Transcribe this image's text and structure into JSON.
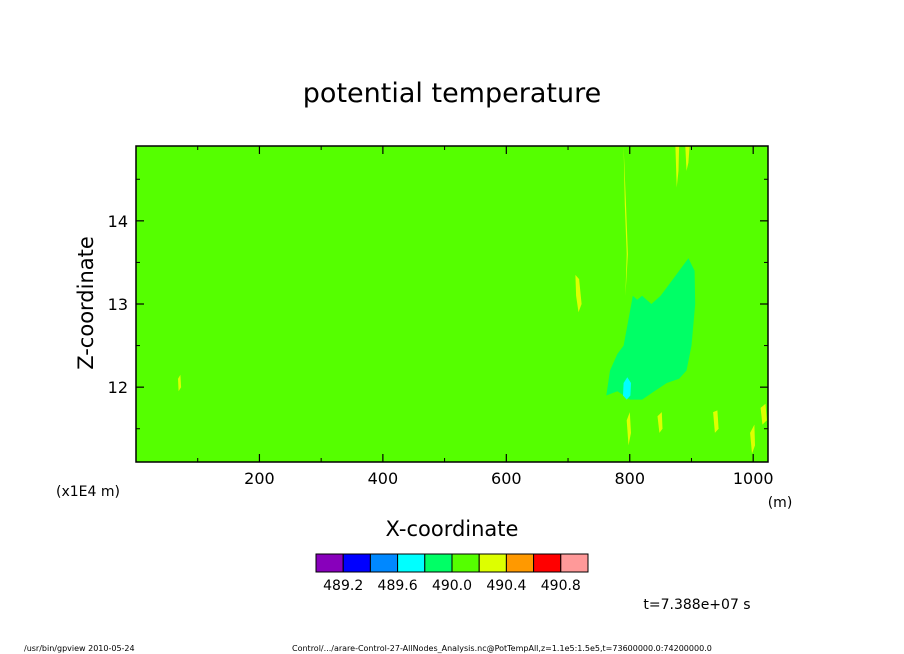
{
  "chart_data": {
    "type": "heatmap",
    "title": "potential temperature",
    "xlabel": "X-coordinate",
    "ylabel": "Z-coordinate",
    "x_unit": "(m)",
    "y_unit": "(x1E4 m)",
    "xlim": [
      0,
      1024
    ],
    "ylim": [
      11.1,
      14.9
    ],
    "x_ticks": [
      200,
      400,
      600,
      800,
      1000
    ],
    "x_tick_labels": [
      "200",
      "400",
      "600",
      "800",
      "1000"
    ],
    "y_ticks": [
      12,
      13,
      14
    ],
    "y_tick_labels": [
      "12",
      "13",
      "14"
    ],
    "background_level_color": "#55ff00",
    "colorbar": {
      "colors": [
        "#8800bb",
        "#0000ff",
        "#0088ff",
        "#00ffff",
        "#00ff66",
        "#55ff00",
        "#ddff00",
        "#ff9900",
        "#ff0000",
        "#ff9999"
      ],
      "labels": [
        "489.2",
        "489.6",
        "490.0",
        "490.4",
        "490.8"
      ]
    },
    "regions": [
      {
        "color": "#00ff66",
        "polygon": [
          [
            762,
            11.9
          ],
          [
            768,
            12.2
          ],
          [
            780,
            12.4
          ],
          [
            790,
            12.5
          ],
          [
            800,
            12.9
          ],
          [
            805,
            13.1
          ],
          [
            812,
            13.05
          ],
          [
            820,
            13.1
          ],
          [
            835,
            13.0
          ],
          [
            850,
            13.1
          ],
          [
            870,
            13.3
          ],
          [
            885,
            13.45
          ],
          [
            895,
            13.55
          ],
          [
            905,
            13.4
          ],
          [
            906,
            13.0
          ],
          [
            900,
            12.5
          ],
          [
            892,
            12.2
          ],
          [
            880,
            12.1
          ],
          [
            860,
            12.05
          ],
          [
            840,
            11.95
          ],
          [
            820,
            11.85
          ],
          [
            800,
            11.85
          ],
          [
            780,
            11.95
          ]
        ]
      },
      {
        "color": "#00ffff",
        "polygon": [
          [
            790,
            12.05
          ],
          [
            796,
            12.12
          ],
          [
            802,
            12.05
          ],
          [
            801,
            11.9
          ],
          [
            795,
            11.85
          ],
          [
            789,
            11.9
          ]
        ]
      },
      {
        "color": "#ddff00",
        "polygon": [
          [
            790,
            14.9
          ],
          [
            794,
            14.2
          ],
          [
            797,
            13.6
          ],
          [
            793,
            13.1
          ],
          [
            795,
            13.6
          ],
          [
            792,
            14.2
          ]
        ]
      },
      {
        "color": "#ddff00",
        "polygon": [
          [
            874,
            14.9
          ],
          [
            880,
            14.9
          ],
          [
            879,
            14.6
          ],
          [
            876,
            14.4
          ]
        ]
      },
      {
        "color": "#ddff00",
        "polygon": [
          [
            890,
            14.9
          ],
          [
            897,
            14.9
          ],
          [
            895,
            14.7
          ],
          [
            892,
            14.6
          ]
        ]
      },
      {
        "color": "#ddff00",
        "polygon": [
          [
            712,
            13.35
          ],
          [
            718,
            13.3
          ],
          [
            722,
            13.0
          ],
          [
            717,
            12.9
          ],
          [
            713,
            13.1
          ]
        ]
      },
      {
        "color": "#ddff00",
        "polygon": [
          [
            795,
            11.6
          ],
          [
            800,
            11.7
          ],
          [
            802,
            11.45
          ],
          [
            798,
            11.3
          ]
        ]
      },
      {
        "color": "#ddff00",
        "polygon": [
          [
            845,
            11.65
          ],
          [
            852,
            11.7
          ],
          [
            853,
            11.5
          ],
          [
            848,
            11.45
          ]
        ]
      },
      {
        "color": "#ddff00",
        "polygon": [
          [
            935,
            11.7
          ],
          [
            942,
            11.72
          ],
          [
            944,
            11.5
          ],
          [
            938,
            11.45
          ]
        ]
      },
      {
        "color": "#ddff00",
        "polygon": [
          [
            995,
            11.45
          ],
          [
            1002,
            11.55
          ],
          [
            1003,
            11.3
          ],
          [
            998,
            11.2
          ]
        ]
      },
      {
        "color": "#ddff00",
        "polygon": [
          [
            1012,
            11.75
          ],
          [
            1020,
            11.8
          ],
          [
            1022,
            11.6
          ],
          [
            1015,
            11.55
          ]
        ]
      },
      {
        "color": "#ddff00",
        "polygon": [
          [
            68,
            12.1
          ],
          [
            72,
            12.15
          ],
          [
            73,
            12.0
          ],
          [
            69,
            11.95
          ]
        ]
      }
    ],
    "annotation": "t=7.388e+07 s"
  },
  "footer": {
    "left": "/usr/bin/gpview   2010-05-24",
    "right": "Control/.../arare-Control-27-AllNodes_Analysis.nc@PotTempAll,z=1.1e5:1.5e5,t=73600000.0:74200000.0"
  }
}
